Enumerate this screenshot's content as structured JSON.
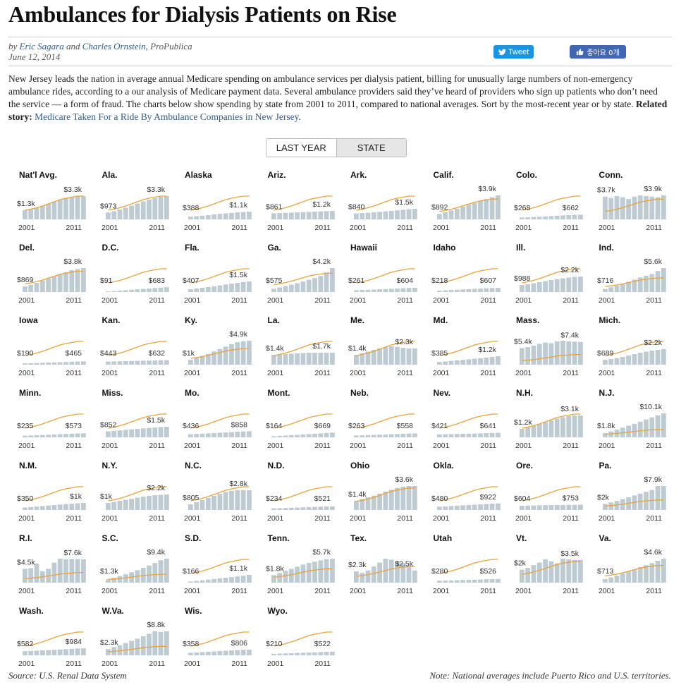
{
  "title": "Ambulances for Dialysis Patients on Rise",
  "byline": {
    "prefix": "by",
    "author1": "Eric Sagara",
    "and": "and",
    "author2": "Charles Ornstein",
    "outlet": ", ProPublica",
    "date": "June 12, 2014"
  },
  "share": {
    "tweet": "Tweet",
    "like": "좋아요 0개"
  },
  "intro": {
    "text": "New Jersey leads the nation in average annual Medicare spending on ambulance services per dialysis patient, billing for unusually large numbers of non-emergency ambulance rides, according to a our analysis of Medicare payment data. Several ambulance providers said they’ve heard of providers who sign up patients who don’t need the service — a form of fraud. The charts below show spending by state from 2001 to 2011, compared to national averages. Sort by the most-recent year or by state.",
    "related_label": "Related story:",
    "related_link": "Medicare Taken For a Ride By Ambulance Companies in New Jersey",
    "related_end": "."
  },
  "toggle": {
    "options": [
      "LAST YEAR",
      "STATE"
    ],
    "selected": "STATE"
  },
  "colors": {
    "bar": "#bfcbd3",
    "line": "#e8a33a",
    "link": "#2f5d8c"
  },
  "chart_data": {
    "type": "bar",
    "x_start": "2001",
    "x_end": "2011",
    "years": [
      2001,
      2002,
      2003,
      2004,
      2005,
      2006,
      2007,
      2008,
      2009,
      2010,
      2011
    ],
    "national_avg_line": [
      1300,
      1450,
      1650,
      1900,
      2200,
      2500,
      2800,
      3000,
      3150,
      3300,
      3300
    ],
    "states": [
      {
        "name": "Nat'l Avg.",
        "first": "$1.3k",
        "last": "$3.3k",
        "values": [
          1300,
          1450,
          1650,
          1900,
          2200,
          2500,
          2800,
          3000,
          3150,
          3300,
          3300
        ]
      },
      {
        "name": "Ala.",
        "first": "$973",
        "last": "$3.3k",
        "values": [
          973,
          1150,
          1400,
          1650,
          1950,
          2250,
          2550,
          2800,
          3000,
          3200,
          3300
        ]
      },
      {
        "name": "Alaska",
        "first": "$388",
        "last": "$1.1k",
        "values": [
          388,
          450,
          520,
          600,
          700,
          780,
          850,
          920,
          990,
          1050,
          1100
        ]
      },
      {
        "name": "Ariz.",
        "first": "$861",
        "last": "$1.2k",
        "values": [
          861,
          880,
          920,
          950,
          990,
          1020,
          1060,
          1100,
          1140,
          1170,
          1200
        ]
      },
      {
        "name": "Ark.",
        "first": "$840",
        "last": "$1.5k",
        "values": [
          840,
          880,
          930,
          990,
          1060,
          1130,
          1200,
          1280,
          1360,
          1430,
          1500
        ]
      },
      {
        "name": "Calif.",
        "first": "$892",
        "last": "$3.9k",
        "values": [
          892,
          1150,
          1450,
          1750,
          2100,
          2400,
          2700,
          3000,
          3300,
          3600,
          3900
        ]
      },
      {
        "name": "Colo.",
        "first": "$268",
        "last": "$662",
        "values": [
          268,
          300,
          340,
          380,
          420,
          470,
          510,
          560,
          600,
          640,
          662
        ]
      },
      {
        "name": "Conn.",
        "first": "$3.7k",
        "last": "$3.9k",
        "values": [
          3700,
          3500,
          3800,
          3600,
          3300,
          3700,
          3900,
          3800,
          3700,
          3600,
          3900
        ]
      },
      {
        "name": "Del.",
        "first": "$869",
        "last": "$3.8k",
        "values": [
          869,
          1150,
          1450,
          1800,
          2150,
          2500,
          2850,
          3150,
          3450,
          3650,
          3800
        ]
      },
      {
        "name": "D.C.",
        "first": "$91",
        "last": "$683",
        "values": [
          91,
          140,
          200,
          260,
          320,
          380,
          440,
          500,
          560,
          620,
          683
        ]
      },
      {
        "name": "Fla.",
        "first": "$407",
        "last": "$1.5k",
        "values": [
          407,
          500,
          600,
          700,
          820,
          940,
          1060,
          1180,
          1300,
          1420,
          1500
        ]
      },
      {
        "name": "Ga.",
        "first": "$575",
        "last": "$4.2k",
        "values": [
          575,
          800,
          1050,
          1300,
          1550,
          1850,
          2150,
          2450,
          2800,
          3400,
          4200
        ]
      },
      {
        "name": "Hawaii",
        "first": "$261",
        "last": "$604",
        "values": [
          261,
          290,
          320,
          350,
          390,
          420,
          460,
          500,
          540,
          580,
          604
        ]
      },
      {
        "name": "Idaho",
        "first": "$218",
        "last": "$607",
        "values": [
          218,
          250,
          290,
          330,
          370,
          410,
          450,
          490,
          530,
          570,
          607
        ]
      },
      {
        "name": "Ill.",
        "first": "$988",
        "last": "$2.2k",
        "values": [
          988,
          1100,
          1250,
          1400,
          1550,
          1700,
          1850,
          1950,
          2050,
          2150,
          2200
        ]
      },
      {
        "name": "Ind.",
        "first": "$716",
        "last": "$5.6k",
        "values": [
          716,
          1100,
          1500,
          1900,
          2400,
          2900,
          3400,
          3800,
          4200,
          4900,
          5600
        ]
      },
      {
        "name": "Iowa",
        "first": "$190",
        "last": "$465",
        "values": [
          190,
          210,
          240,
          270,
          300,
          330,
          360,
          390,
          420,
          450,
          465
        ]
      },
      {
        "name": "Kan.",
        "first": "$443",
        "last": "$632",
        "values": [
          443,
          460,
          480,
          500,
          520,
          540,
          560,
          580,
          600,
          620,
          632
        ]
      },
      {
        "name": "Ky.",
        "first": "$1k",
        "last": "$4.9k",
        "values": [
          1000,
          1400,
          1800,
          2200,
          2700,
          3200,
          3700,
          4200,
          4600,
          4800,
          4900
        ]
      },
      {
        "name": "La.",
        "first": "$1.4k",
        "last": "$1.7k",
        "values": [
          1400,
          1450,
          1500,
          1550,
          1600,
          1650,
          1700,
          1700,
          1700,
          1700,
          1700
        ]
      },
      {
        "name": "Me.",
        "first": "$1.4k",
        "last": "$2.3k",
        "values": [
          1400,
          1600,
          1850,
          2100,
          2300,
          2500,
          2600,
          2500,
          2400,
          2300,
          2300
        ]
      },
      {
        "name": "Md.",
        "first": "$385",
        "last": "$1.2k",
        "values": [
          385,
          450,
          530,
          610,
          690,
          770,
          850,
          930,
          1010,
          1100,
          1200
        ]
      },
      {
        "name": "Mass.",
        "first": "$5.4k",
        "last": "$7.4k",
        "values": [
          5400,
          5700,
          6200,
          6800,
          7200,
          7000,
          7600,
          7800,
          7600,
          7500,
          7400
        ]
      },
      {
        "name": "Mich.",
        "first": "$689",
        "last": "$2.2k",
        "values": [
          689,
          800,
          950,
          1100,
          1300,
          1500,
          1700,
          1850,
          2000,
          2100,
          2200
        ]
      },
      {
        "name": "Minn.",
        "first": "$235",
        "last": "$573",
        "values": [
          235,
          265,
          300,
          335,
          370,
          410,
          450,
          490,
          520,
          550,
          573
        ]
      },
      {
        "name": "Miss.",
        "first": "$852",
        "last": "$1.5k",
        "values": [
          852,
          920,
          990,
          1060,
          1130,
          1200,
          1270,
          1340,
          1400,
          1460,
          1500
        ]
      },
      {
        "name": "Mo.",
        "first": "$436",
        "last": "$858",
        "values": [
          436,
          480,
          520,
          560,
          610,
          660,
          700,
          750,
          800,
          830,
          858
        ]
      },
      {
        "name": "Mont.",
        "first": "$164",
        "last": "$669",
        "values": [
          164,
          210,
          260,
          310,
          360,
          410,
          460,
          510,
          560,
          620,
          669
        ]
      },
      {
        "name": "Neb.",
        "first": "$263",
        "last": "$558",
        "values": [
          263,
          290,
          320,
          350,
          380,
          410,
          440,
          470,
          500,
          530,
          558
        ]
      },
      {
        "name": "Nev.",
        "first": "$421",
        "last": "$641",
        "values": [
          421,
          440,
          460,
          480,
          500,
          520,
          540,
          570,
          600,
          620,
          641
        ]
      },
      {
        "name": "N.H.",
        "first": "$1.2k",
        "last": "$3.1k",
        "values": [
          1200,
          1400,
          1650,
          1900,
          2150,
          2400,
          2650,
          2850,
          3000,
          3100,
          3100
        ]
      },
      {
        "name": "N.J.",
        "first": "$1.8k",
        "last": "$10.1k",
        "values": [
          1800,
          2500,
          3300,
          4100,
          4900,
          5700,
          6600,
          7500,
          8400,
          9300,
          10100
        ]
      },
      {
        "name": "N.M.",
        "first": "$350",
        "last": "$1k",
        "values": [
          350,
          420,
          490,
          560,
          630,
          700,
          770,
          840,
          900,
          960,
          1000
        ]
      },
      {
        "name": "N.Y.",
        "first": "$1k",
        "last": "$2.2k",
        "values": [
          1000,
          1150,
          1300,
          1450,
          1600,
          1750,
          1900,
          2000,
          2100,
          2150,
          2200
        ]
      },
      {
        "name": "N.C.",
        "first": "$805",
        "last": "$2.8k",
        "values": [
          805,
          1100,
          1400,
          1700,
          2000,
          2300,
          2550,
          2700,
          2800,
          2800,
          2800
        ]
      },
      {
        "name": "N.D.",
        "first": "$234",
        "last": "$521",
        "values": [
          234,
          260,
          290,
          320,
          350,
          380,
          410,
          440,
          470,
          500,
          521
        ]
      },
      {
        "name": "Ohio",
        "first": "$1.4k",
        "last": "$3.6k",
        "values": [
          1400,
          1650,
          1900,
          2150,
          2450,
          2750,
          3050,
          3300,
          3500,
          3600,
          3600
        ]
      },
      {
        "name": "Okla.",
        "first": "$480",
        "last": "$922",
        "values": [
          480,
          520,
          560,
          610,
          660,
          710,
          760,
          810,
          860,
          900,
          922
        ]
      },
      {
        "name": "Ore.",
        "first": "$604",
        "last": "$753",
        "values": [
          604,
          620,
          640,
          660,
          680,
          700,
          710,
          720,
          730,
          740,
          753
        ]
      },
      {
        "name": "Pa.",
        "first": "$2k",
        "last": "$7.9k",
        "values": [
          2000,
          2500,
          3000,
          3600,
          4200,
          4800,
          5400,
          6000,
          6600,
          7900,
          7900
        ]
      },
      {
        "name": "R.I.",
        "first": "$4.5k",
        "last": "$7.6k",
        "values": [
          4500,
          4700,
          6200,
          3700,
          4500,
          6500,
          7800,
          7600,
          7700,
          7700,
          7600
        ]
      },
      {
        "name": "S.C.",
        "first": "$1.3k",
        "last": "$9.4k",
        "values": [
          1300,
          1900,
          2600,
          3300,
          4100,
          4900,
          5800,
          6700,
          7700,
          8800,
          9400
        ]
      },
      {
        "name": "S.D.",
        "first": "$166",
        "last": "$1.1k",
        "values": [
          166,
          250,
          340,
          430,
          520,
          610,
          700,
          790,
          880,
          980,
          1100
        ]
      },
      {
        "name": "Tenn.",
        "first": "$1.8k",
        "last": "$5.7k",
        "values": [
          1800,
          2300,
          2800,
          3300,
          3800,
          4300,
          4700,
          5000,
          5300,
          5600,
          5700
        ]
      },
      {
        "name": "Tex.",
        "first": "$2.3k",
        "last": "$2.5k",
        "values": [
          2300,
          2000,
          2500,
          3300,
          4100,
          4900,
          4700,
          4300,
          4000,
          3400,
          2500
        ]
      },
      {
        "name": "Utah",
        "first": "$280",
        "last": "$526",
        "values": [
          280,
          300,
          320,
          350,
          380,
          400,
          420,
          450,
          480,
          500,
          526
        ]
      },
      {
        "name": "Vt.",
        "first": "$2k",
        "last": "$3.5k",
        "values": [
          2000,
          2300,
          2700,
          3100,
          3600,
          3300,
          3000,
          3700,
          3600,
          3500,
          3500
        ]
      },
      {
        "name": "Va.",
        "first": "$713",
        "last": "$4.6k",
        "values": [
          713,
          1000,
          1350,
          1750,
          2150,
          2550,
          2950,
          3350,
          3750,
          4200,
          4600
        ]
      },
      {
        "name": "Wash.",
        "first": "$582",
        "last": "$984",
        "values": [
          582,
          620,
          660,
          700,
          740,
          780,
          820,
          870,
          920,
          960,
          984
        ]
      },
      {
        "name": "W.Va.",
        "first": "$2.3k",
        "last": "$8.8k",
        "values": [
          2300,
          3000,
          3700,
          4500,
          5300,
          6100,
          7000,
          7900,
          8800,
          8600,
          8800
        ]
      },
      {
        "name": "Wis.",
        "first": "$358",
        "last": "$806",
        "values": [
          358,
          400,
          450,
          500,
          550,
          600,
          650,
          700,
          750,
          790,
          806
        ]
      },
      {
        "name": "Wyo.",
        "first": "$210",
        "last": "$522",
        "values": [
          210,
          240,
          270,
          300,
          330,
          360,
          390,
          420,
          460,
          500,
          522
        ]
      }
    ]
  },
  "footer": {
    "source": "Source: U.S. Renal Data System",
    "note": "Note: National averages include Puerto Rico and U.S. territories."
  }
}
